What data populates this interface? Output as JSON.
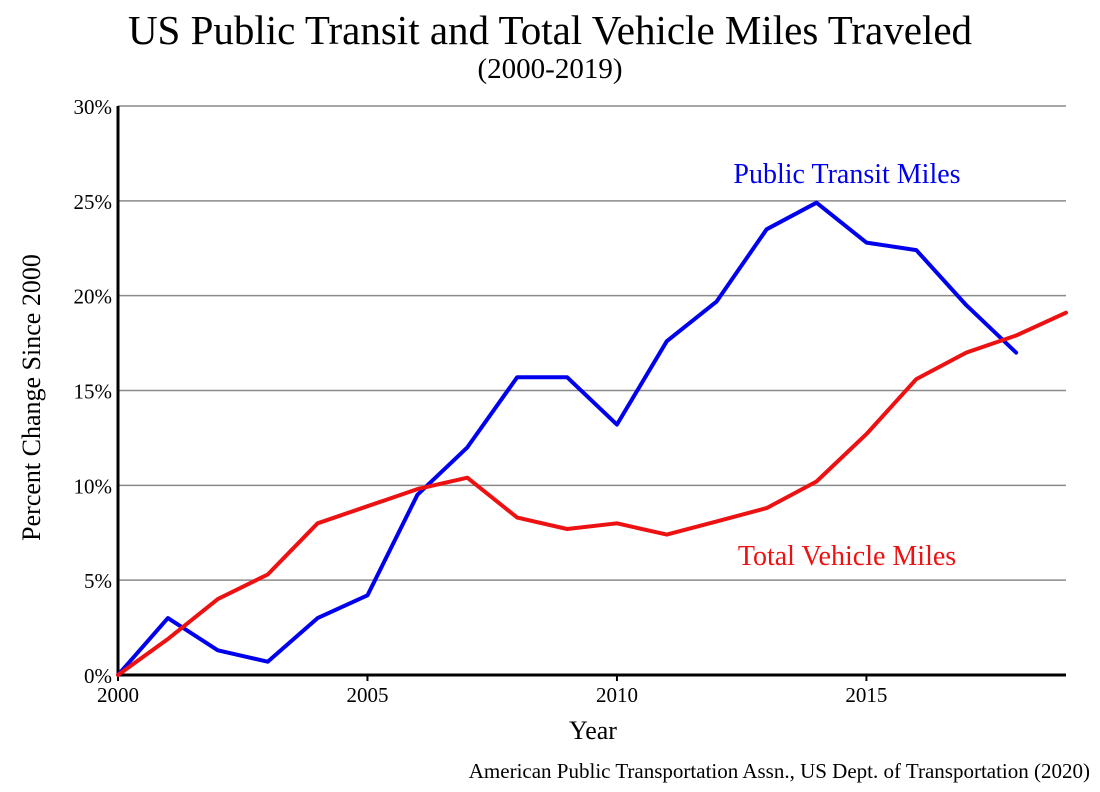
{
  "chart_data": {
    "type": "line",
    "title": "US Public Transit and Total Vehicle Miles Traveled",
    "subtitle": "(2000-2019)",
    "xlabel": "Year",
    "ylabel": "Percent Change Since 2000",
    "xlim": [
      2000,
      2019
    ],
    "ylim": [
      0,
      30
    ],
    "x_ticks": [
      {
        "value": 2000,
        "label": "2000"
      },
      {
        "value": 2005,
        "label": "2005"
      },
      {
        "value": 2010,
        "label": "2010"
      },
      {
        "value": 2015,
        "label": "2015"
      }
    ],
    "y_ticks": [
      {
        "value": 0,
        "label": "0%"
      },
      {
        "value": 5,
        "label": "5%"
      },
      {
        "value": 10,
        "label": "10%"
      },
      {
        "value": 15,
        "label": "15%"
      },
      {
        "value": 20,
        "label": "20%"
      },
      {
        "value": 25,
        "label": "25%"
      },
      {
        "value": 30,
        "label": "30%"
      }
    ],
    "grid": "horizontal",
    "series": [
      {
        "name": "Public Transit Miles",
        "color": "#0000ee",
        "x": [
          2000,
          2001,
          2002,
          2003,
          2004,
          2005,
          2006,
          2007,
          2008,
          2009,
          2010,
          2011,
          2012,
          2013,
          2014,
          2015,
          2016,
          2017,
          2018
        ],
        "y": [
          0,
          3.0,
          1.3,
          0.7,
          3.0,
          4.2,
          9.5,
          12.0,
          15.7,
          15.7,
          13.2,
          17.6,
          19.7,
          23.5,
          24.9,
          22.8,
          22.4,
          19.5,
          17.0
        ]
      },
      {
        "name": "Total Vehicle Miles",
        "color": "#ee1111",
        "x": [
          2000,
          2001,
          2002,
          2003,
          2004,
          2005,
          2006,
          2007,
          2008,
          2009,
          2010,
          2011,
          2012,
          2013,
          2014,
          2015,
          2016,
          2017,
          2018,
          2019
        ],
        "y": [
          0,
          1.9,
          4.0,
          5.3,
          8.0,
          8.9,
          9.8,
          10.4,
          8.3,
          7.7,
          8.0,
          7.4,
          8.1,
          8.8,
          10.2,
          12.7,
          15.6,
          17.0,
          17.9,
          19.1
        ]
      }
    ]
  },
  "source": "American Public Transportation Assn., US Dept. of Transportation (2020)"
}
